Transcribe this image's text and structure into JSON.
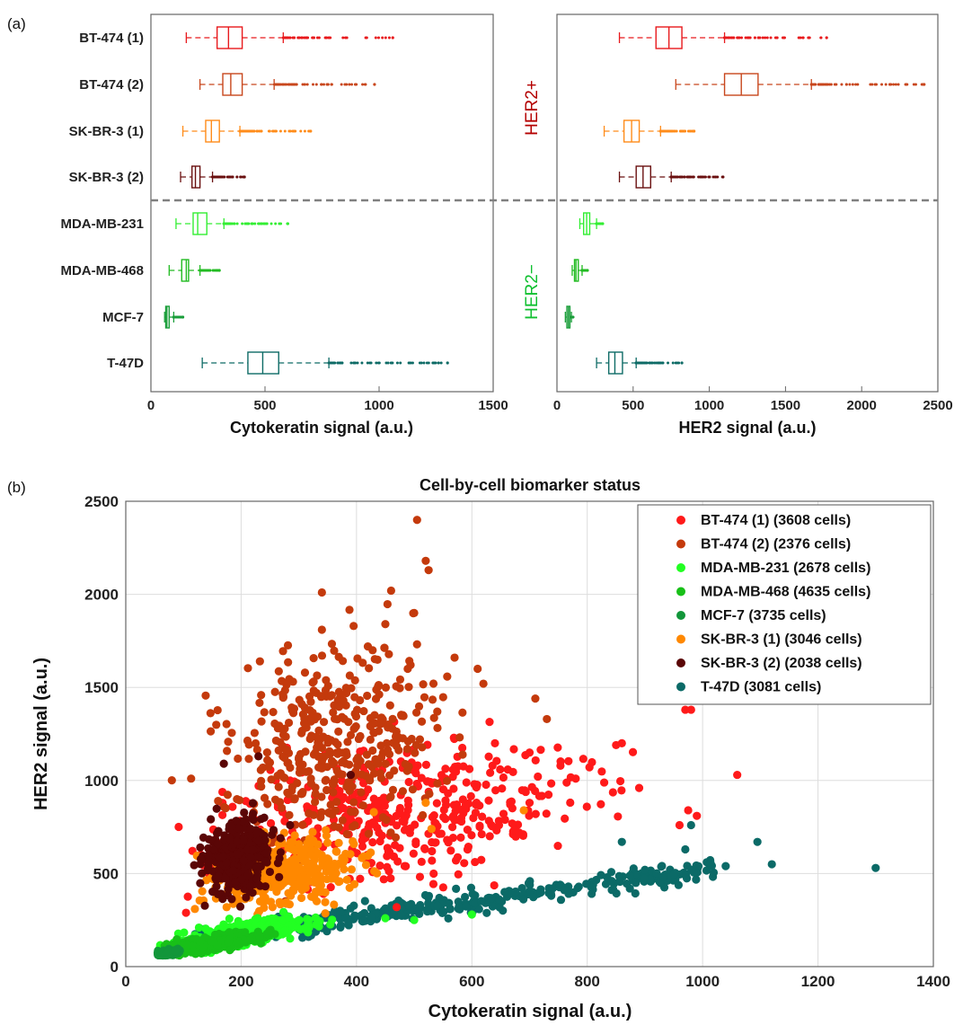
{
  "panel_a_label": "(a)",
  "panel_b_label": "(b)",
  "group_labels": {
    "pos": "HER2+",
    "neg": "HER2−",
    "pos_color": "#b40000",
    "neg_color": "#10c030"
  },
  "chart_data": [
    {
      "type": "boxplot",
      "panel": "a-left",
      "xlabel": "Cytokeratin signal (a.u.)",
      "xlim": [
        0,
        1500
      ],
      "xticks": [
        "0",
        "500",
        "1000",
        "1500"
      ],
      "categories": [
        "BT-474 (1)",
        "BT-474 (2)",
        "SK-BR-3 (1)",
        "SK-BR-3 (2)",
        "MDA-MB-231",
        "MDA-MB-468",
        "MCF-7",
        "T-47D"
      ],
      "colors": [
        "#e8191c",
        "#c8461c",
        "#ff8c1a",
        "#6a1010",
        "#33ee33",
        "#22bb22",
        "#1a9e3a",
        "#0e6b66"
      ],
      "boxes": [
        {
          "whisker_low": 155,
          "q1": 290,
          "median": 340,
          "q3": 400,
          "whisker_high": 580,
          "outlier_max": 1060
        },
        {
          "whisker_low": 215,
          "q1": 315,
          "median": 350,
          "q3": 400,
          "whisker_high": 540,
          "outlier_max": 980
        },
        {
          "whisker_low": 140,
          "q1": 240,
          "median": 265,
          "q3": 300,
          "whisker_high": 390,
          "outlier_max": 700
        },
        {
          "whisker_low": 130,
          "q1": 180,
          "median": 195,
          "q3": 215,
          "whisker_high": 270,
          "outlier_max": 410
        },
        {
          "whisker_low": 110,
          "q1": 185,
          "median": 205,
          "q3": 245,
          "whisker_high": 320,
          "outlier_max": 600
        },
        {
          "whisker_low": 80,
          "q1": 135,
          "median": 155,
          "q3": 165,
          "whisker_high": 215,
          "outlier_max": 300
        },
        {
          "whisker_low": 60,
          "q1": 65,
          "median": 70,
          "q3": 80,
          "whisker_high": 100,
          "outlier_max": 140
        },
        {
          "whisker_low": 225,
          "q1": 425,
          "median": 490,
          "q3": 560,
          "whisker_high": 780,
          "outlier_max": 1300
        }
      ]
    },
    {
      "type": "boxplot",
      "panel": "a-right",
      "xlabel": "HER2 signal (a.u.)",
      "xlim": [
        0,
        2500
      ],
      "xticks": [
        "0",
        "500",
        "1000",
        "1500",
        "2000",
        "2500"
      ],
      "categories": [
        "BT-474 (1)",
        "BT-474 (2)",
        "SK-BR-3 (1)",
        "SK-BR-3 (2)",
        "MDA-MB-231",
        "MDA-MB-468",
        "MCF-7",
        "T-47D"
      ],
      "boxes": [
        {
          "whisker_low": 410,
          "q1": 650,
          "median": 735,
          "q3": 820,
          "whisker_high": 1100,
          "outlier_max": 1770
        },
        {
          "whisker_low": 780,
          "q1": 1100,
          "median": 1210,
          "q3": 1320,
          "whisker_high": 1670,
          "outlier_max": 2410
        },
        {
          "whisker_low": 310,
          "q1": 440,
          "median": 490,
          "q3": 540,
          "whisker_high": 680,
          "outlier_max": 900
        },
        {
          "whisker_low": 410,
          "q1": 520,
          "median": 565,
          "q3": 615,
          "whisker_high": 750,
          "outlier_max": 1090
        },
        {
          "whisker_low": 150,
          "q1": 175,
          "median": 195,
          "q3": 215,
          "whisker_high": 260,
          "outlier_max": 300
        },
        {
          "whisker_low": 100,
          "q1": 115,
          "median": 125,
          "q3": 140,
          "whisker_high": 165,
          "outlier_max": 200
        },
        {
          "whisker_low": 55,
          "q1": 65,
          "median": 75,
          "q3": 85,
          "whisker_high": 95,
          "outlier_max": 105
        },
        {
          "whisker_low": 260,
          "q1": 340,
          "median": 380,
          "q3": 430,
          "whisker_high": 520,
          "outlier_max": 820
        }
      ]
    },
    {
      "type": "scatter",
      "panel": "b",
      "title": "Cell-by-cell biomarker status",
      "xlabel": "Cytokeratin signal (a.u.)",
      "ylabel": "HER2 signal (a.u.)",
      "xlim": [
        0,
        1400
      ],
      "ylim": [
        0,
        2500
      ],
      "xticks": [
        "0",
        "200",
        "400",
        "600",
        "800",
        "1000",
        "1200",
        "1400"
      ],
      "yticks": [
        "0",
        "500",
        "1000",
        "1500",
        "2000",
        "2500"
      ],
      "grid": true,
      "legend_position": "top-right",
      "series": [
        {
          "name": "BT-474 (1) (3608 cells)",
          "color": "#ff1a1a",
          "cx": 470,
          "cy": 800,
          "sx": 150,
          "sy": 180,
          "extra": [
            [
              980,
              1380
            ],
            [
              970,
              1380
            ],
            [
              1060,
              1030
            ],
            [
              990,
              810
            ],
            [
              975,
              840
            ],
            [
              960,
              760
            ],
            [
              890,
              960
            ],
            [
              860,
              1200
            ],
            [
              850,
              1190
            ],
            [
              780,
              1010
            ],
            [
              700,
              1150
            ],
            [
              640,
              1200
            ],
            [
              700,
              880
            ]
          ]
        },
        {
          "name": "BT-474 (2) (2376 cells)",
          "color": "#c43a0c",
          "cx": 360,
          "cy": 1200,
          "sx": 90,
          "sy": 260,
          "extra": [
            [
              505,
              2400
            ],
            [
              520,
              2180
            ],
            [
              525,
              2130
            ],
            [
              460,
              2020
            ],
            [
              340,
              2010
            ],
            [
              395,
              1830
            ],
            [
              340,
              1810
            ],
            [
              570,
              1660
            ],
            [
              610,
              1600
            ],
            [
              620,
              1520
            ],
            [
              710,
              1440
            ],
            [
              730,
              1330
            ],
            [
              450,
              1840
            ],
            [
              500,
              1900
            ]
          ]
        },
        {
          "name": "MDA-MB-231 (2678 cells)",
          "color": "#22ff22",
          "cx": 205,
          "cy": 180,
          "sx": 60,
          "sy": 50,
          "extra": [
            [
              600,
              280
            ],
            [
              500,
              250
            ],
            [
              450,
              260
            ]
          ]
        },
        {
          "name": "MDA-MB-468 (4635 cells)",
          "color": "#18c018",
          "cx": 150,
          "cy": 125,
          "sx": 40,
          "sy": 30,
          "extra": []
        },
        {
          "name": "MCF-7 (3735 cells)",
          "color": "#12963a",
          "cx": 72,
          "cy": 72,
          "sx": 10,
          "sy": 10,
          "extra": []
        },
        {
          "name": "SK-BR-3 (1) (3046 cells)",
          "color": "#ff8800",
          "cx": 270,
          "cy": 500,
          "sx": 60,
          "sy": 80,
          "extra": [
            [
              690,
              840
            ],
            [
              520,
              880
            ],
            [
              430,
              830
            ],
            [
              530,
              740
            ]
          ]
        },
        {
          "name": "SK-BR-3 (2) (2038 cells)",
          "color": "#5a0606",
          "cx": 195,
          "cy": 580,
          "sx": 26,
          "sy": 90,
          "extra": [
            [
              170,
              1090
            ],
            [
              230,
              1130
            ],
            [
              390,
              1030
            ],
            [
              240,
              800
            ]
          ]
        },
        {
          "name": "T-47D (3081 cells)",
          "color": "#0b6a67",
          "cx": 490,
          "cy": 370,
          "sx": 150,
          "sy": 60,
          "extra": [
            [
              1300,
              530
            ],
            [
              1120,
              550
            ],
            [
              1095,
              670
            ],
            [
              1040,
              540
            ],
            [
              980,
              760
            ],
            [
              970,
              630
            ],
            [
              900,
              520
            ],
            [
              860,
              670
            ]
          ]
        }
      ]
    }
  ]
}
